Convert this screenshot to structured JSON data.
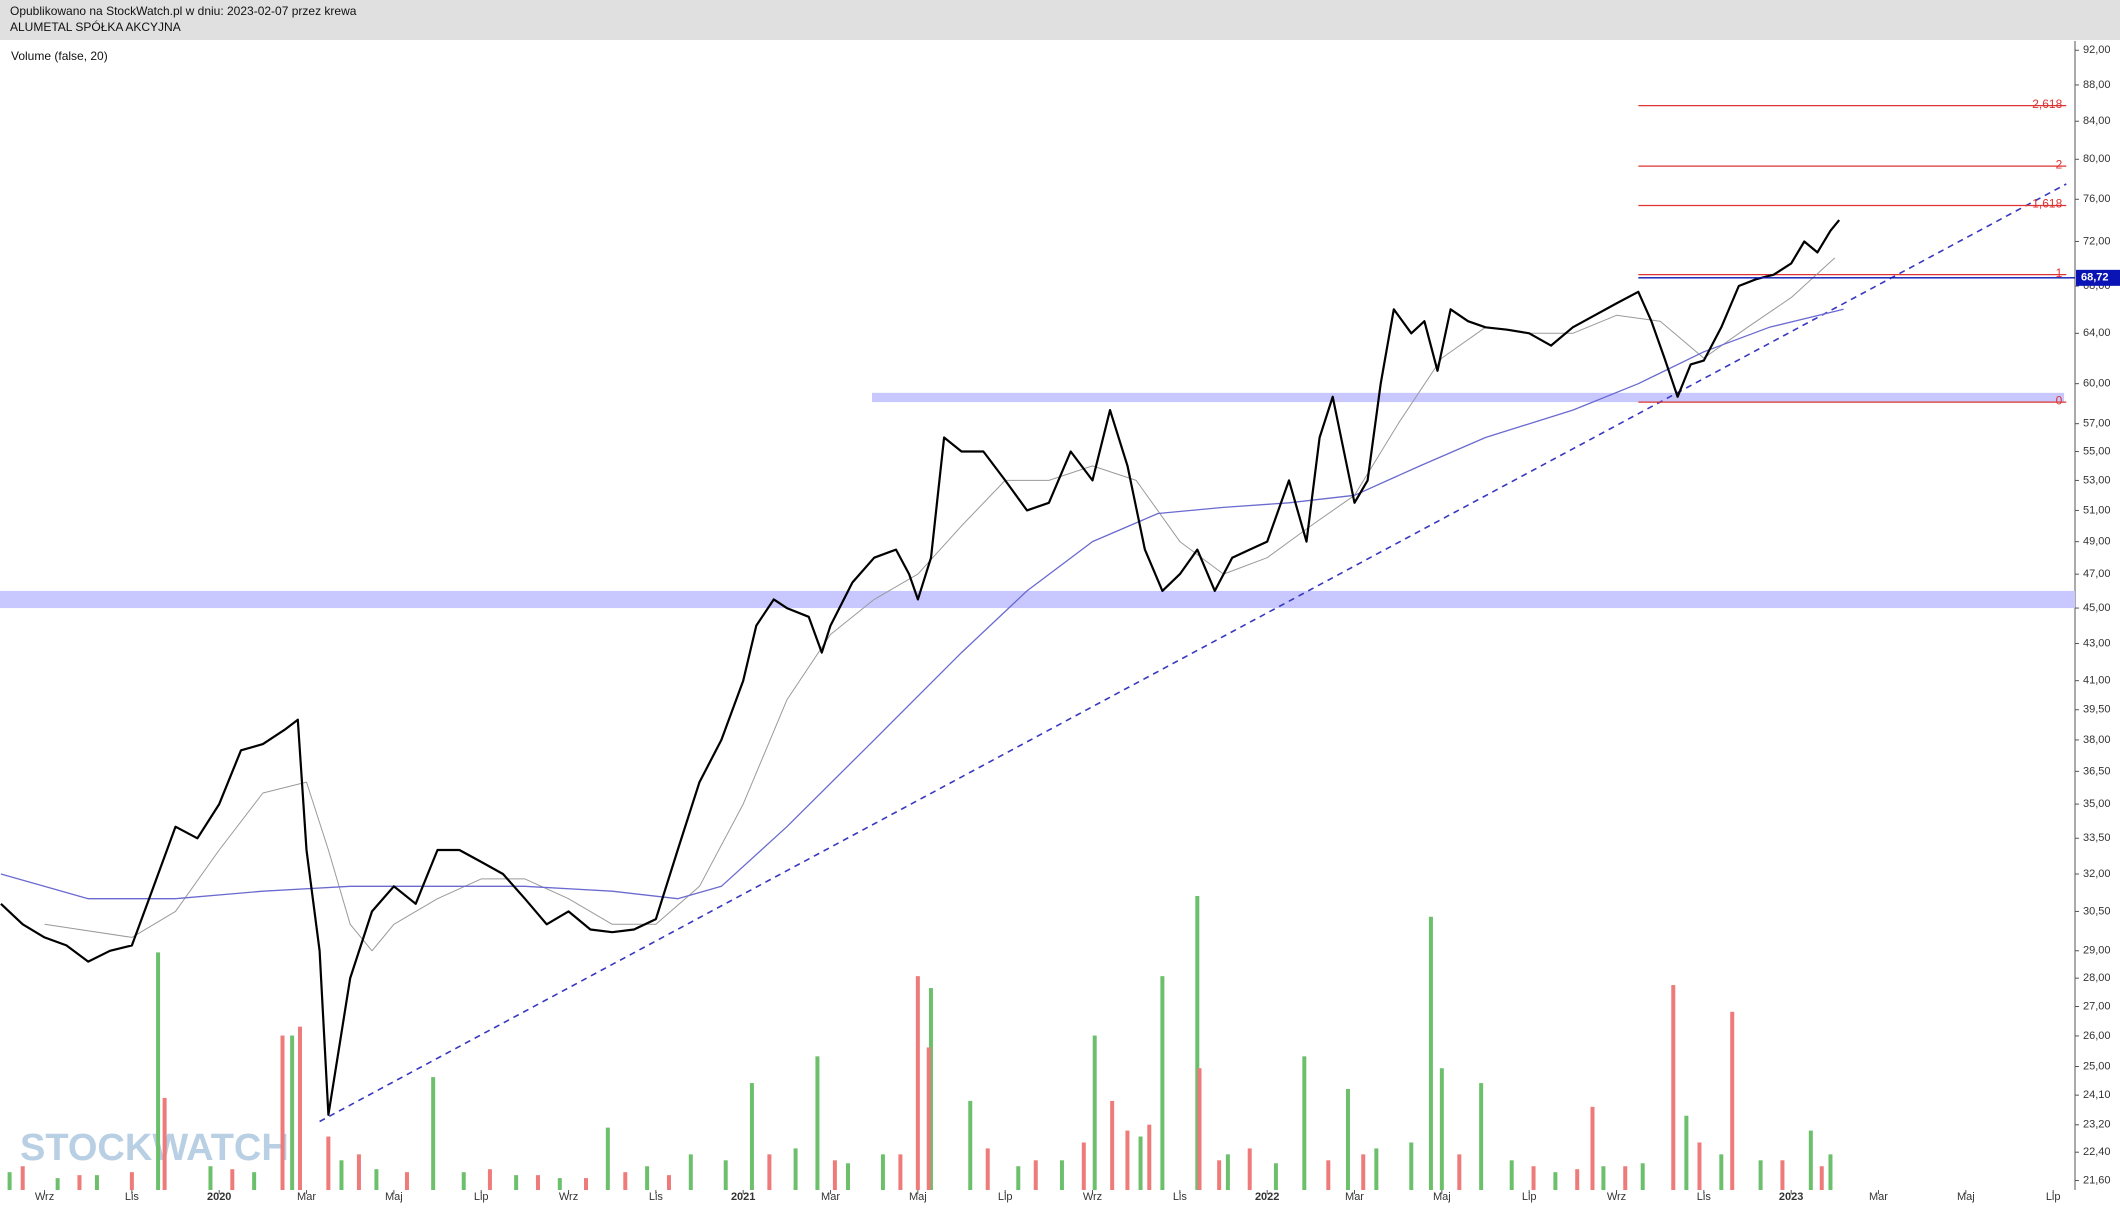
{
  "chart_data": {
    "type": "line",
    "title": "Opublikowano na StockWatch.pl w dniu: 2023-02-07 przez krewa",
    "subtitle": "ALUMETAL SPÓŁKA AKCYJNA",
    "indicator_label": "Volume (false, 20)",
    "watermark": "STOCKWATCH",
    "log_scale": true,
    "xlim": [
      -1.02,
      46.5
    ],
    "xticks": [
      {
        "value": 0,
        "label": "Wrz"
      },
      {
        "value": 2,
        "label": "Lis"
      },
      {
        "value": 4,
        "label": "2020"
      },
      {
        "value": 6,
        "label": "Mar"
      },
      {
        "value": 8,
        "label": "Maj"
      },
      {
        "value": 10,
        "label": "Lip"
      },
      {
        "value": 12,
        "label": "Wrz"
      },
      {
        "value": 14,
        "label": "Lis"
      },
      {
        "value": 16,
        "label": "2021"
      },
      {
        "value": 18,
        "label": "Mar"
      },
      {
        "value": 20,
        "label": "Maj"
      },
      {
        "value": 22,
        "label": "Lip"
      },
      {
        "value": 24,
        "label": "Wrz"
      },
      {
        "value": 26,
        "label": "Lis"
      },
      {
        "value": 28,
        "label": "2022"
      },
      {
        "value": 30,
        "label": "Mar"
      },
      {
        "value": 32,
        "label": "Maj"
      },
      {
        "value": 34,
        "label": "Lip"
      },
      {
        "value": 36,
        "label": "Wrz"
      },
      {
        "value": 38,
        "label": "Lis"
      },
      {
        "value": 40,
        "label": "2023"
      },
      {
        "value": 42,
        "label": "Mar"
      },
      {
        "value": 44,
        "label": "Maj"
      },
      {
        "value": 46,
        "label": "Lip"
      }
    ],
    "ylim": [
      21.34,
      93.1
    ],
    "yticks": [
      {
        "value": 92,
        "label": "92,00"
      },
      {
        "value": 88,
        "label": "88,00"
      },
      {
        "value": 84,
        "label": "84,00"
      },
      {
        "value": 80,
        "label": "80,00"
      },
      {
        "value": 76,
        "label": "76,00"
      },
      {
        "value": 72,
        "label": "72,00"
      },
      {
        "value": 68,
        "label": "68,00"
      },
      {
        "value": 64,
        "label": "64,00"
      },
      {
        "value": 60,
        "label": "60,00"
      },
      {
        "value": 57,
        "label": "57,00"
      },
      {
        "value": 55,
        "label": "55,00"
      },
      {
        "value": 53,
        "label": "53,00"
      },
      {
        "value": 51,
        "label": "51,00"
      },
      {
        "value": 49,
        "label": "49,00"
      },
      {
        "value": 47,
        "label": "47,00"
      },
      {
        "value": 45,
        "label": "45,00"
      },
      {
        "value": 43,
        "label": "43,00"
      },
      {
        "value": 41,
        "label": "41,00"
      },
      {
        "value": 39.5,
        "label": "39,50"
      },
      {
        "value": 38,
        "label": "38,00"
      },
      {
        "value": 36.5,
        "label": "36,50"
      },
      {
        "value": 35,
        "label": "35,00"
      },
      {
        "value": 33.5,
        "label": "33,50"
      },
      {
        "value": 32,
        "label": "32,00"
      },
      {
        "value": 30.5,
        "label": "30,50"
      },
      {
        "value": 29,
        "label": "29,00"
      },
      {
        "value": 28,
        "label": "28,00"
      },
      {
        "value": 27,
        "label": "27,00"
      },
      {
        "value": 26,
        "label": "26,00"
      },
      {
        "value": 25,
        "label": "25,00"
      },
      {
        "value": 24.1,
        "label": "24,10"
      },
      {
        "value": 23.2,
        "label": "23,20"
      },
      {
        "value": 22.4,
        "label": "22,40"
      },
      {
        "value": 21.6,
        "label": "21,60"
      }
    ],
    "bands": [
      {
        "color": "#c8c8ff",
        "from": 45.0,
        "to": 46.0,
        "x": [
          -1.02,
          46.5
        ]
      },
      {
        "color": "#c8c8ff",
        "from": 58.6,
        "to": 59.3,
        "x": [
          18.95,
          46.25
        ]
      }
    ],
    "series": [
      {
        "color": "#9a9a9a",
        "width": 1,
        "x": [
          0,
          2,
          3,
          4,
          5,
          6,
          6.5,
          7,
          7.5,
          8,
          9,
          10,
          11,
          12,
          13,
          14,
          15,
          16,
          17,
          18,
          19,
          20,
          21,
          22,
          23,
          24,
          25,
          26,
          27,
          28,
          29,
          30,
          31,
          32,
          33,
          34,
          35,
          36,
          37,
          38,
          39,
          40,
          41
        ],
        "values": [
          30,
          29.5,
          30.5,
          33,
          35.5,
          36,
          33,
          30,
          29,
          30,
          31,
          31.8,
          31.8,
          31,
          30,
          30,
          31.5,
          35,
          40,
          43.5,
          45.5,
          47,
          50,
          53,
          53,
          54,
          53,
          49,
          47,
          48,
          50,
          52,
          57,
          62,
          64.5,
          64,
          64,
          65.5,
          65,
          62,
          64.5,
          67,
          70.5
        ]
      },
      {
        "color": "#6a6ad0",
        "width": 1.3,
        "x": [
          -1,
          1,
          3,
          5,
          7,
          9,
          11,
          13,
          14.5,
          15.5,
          17,
          19,
          21,
          22.5,
          24,
          25.5,
          27,
          28.5,
          30,
          31.5,
          33,
          35,
          36.5,
          38,
          39.5,
          41.2
        ],
        "values": [
          32,
          31,
          31,
          31.3,
          31.5,
          31.5,
          31.5,
          31.3,
          31,
          31.5,
          34,
          38,
          42.5,
          46,
          49,
          50.8,
          51.2,
          51.5,
          52,
          54,
          56,
          58,
          60,
          62.5,
          64.5,
          66
        ]
      },
      {
        "color": "#000000",
        "width": 2.2,
        "x": [
          -1,
          -0.5,
          0,
          0.5,
          1,
          1.5,
          2,
          2.5,
          3,
          3.5,
          4,
          4.5,
          5,
          5.5,
          5.8,
          6,
          6.3,
          6.5,
          7,
          7.5,
          8,
          8.5,
          9,
          9.5,
          10,
          10.5,
          11,
          11.5,
          12,
          12.5,
          13,
          13.5,
          14,
          14.5,
          15,
          15.5,
          16,
          16.3,
          16.7,
          17,
          17.5,
          17.8,
          18,
          18.5,
          19,
          19.5,
          19.8,
          20,
          20.3,
          20.6,
          21,
          21.5,
          22,
          22.5,
          23,
          23.5,
          24,
          24.4,
          24.8,
          25.2,
          25.6,
          26,
          26.4,
          26.8,
          27.2,
          27.6,
          28,
          28.5,
          28.9,
          29.2,
          29.5,
          30,
          30.3,
          30.6,
          30.9,
          31.3,
          31.6,
          31.9,
          32.2,
          32.6,
          33,
          33.5,
          34,
          34.5,
          35,
          35.5,
          36,
          36.5,
          36.8,
          37.1,
          37.4,
          37.7,
          38,
          38.4,
          38.8,
          39.2,
          39.6,
          40,
          40.3,
          40.6,
          40.9,
          41.1
        ],
        "values": [
          30.8,
          30,
          29.5,
          29.2,
          28.6,
          29,
          29.2,
          31.5,
          34,
          33.5,
          35,
          37.5,
          37.8,
          38.5,
          39,
          33,
          29,
          23.5,
          28,
          30.5,
          31.5,
          30.8,
          33,
          33,
          32.5,
          32,
          31,
          30,
          30.5,
          29.8,
          29.7,
          29.8,
          30.2,
          33,
          36,
          38,
          41,
          44,
          45.5,
          45,
          44.5,
          42.5,
          44,
          46.5,
          48,
          48.5,
          47,
          45.5,
          48,
          56,
          55,
          55,
          53,
          51,
          51.5,
          55,
          53,
          58,
          54,
          48.5,
          46,
          47,
          48.5,
          46,
          48,
          48.5,
          49,
          53,
          49,
          56,
          59,
          51.5,
          53,
          60,
          66,
          64,
          65,
          61,
          66,
          65,
          64.5,
          64.3,
          64,
          63,
          64.5,
          65.5,
          66.5,
          67.5,
          65,
          62,
          59,
          61.5,
          61.8,
          64.5,
          68,
          68.6,
          69,
          70,
          72,
          71,
          73,
          74
        ]
      }
    ],
    "trendline": {
      "color": "#3838c0",
      "x": [
        6.3,
        46.3
      ],
      "values": [
        23.3,
        77.5
      ]
    },
    "fib_color": "#dd3333",
    "fib_x": [
      36.5,
      46.3
    ],
    "fib_levels": [
      {
        "label": "0",
        "value": 58.6
      },
      {
        "label": "1",
        "value": 69.0
      },
      {
        "label": "1,618",
        "value": 75.4
      },
      {
        "label": "2",
        "value": 79.3
      },
      {
        "label": "2,618",
        "value": 85.7
      }
    ],
    "last_price": {
      "value": 68.72,
      "label": "68,72",
      "color": "#0a14b4"
    },
    "volume": {
      "vlim": [
        0,
        100
      ],
      "series": [
        {
          "color": "#6cc06c",
          "x": [
            2.6,
            5.67,
            8.9,
            12.9,
            16.2,
            17.7,
            20.3,
            21.2,
            24.05,
            25.6,
            26.4,
            28.85,
            29.85,
            31.75,
            32.0,
            32.9,
            37.6,
            40.45,
            -0.8,
            0.3,
            1.2,
            3.8,
            4.8,
            6.8,
            7.6,
            9.6,
            10.8,
            11.8,
            13.8,
            14.8,
            15.6,
            17.2,
            18.4,
            19.2,
            22.3,
            23.3,
            25.1,
            27.1,
            28.2,
            30.5,
            31.3,
            33.6,
            34.6,
            35.7,
            36.6,
            38.4,
            39.3,
            40.9
          ],
          "values": [
            80,
            52,
            38,
            21,
            36,
            45,
            68,
            30,
            52,
            72,
            99,
            45,
            34,
            92,
            41,
            36,
            25,
            20,
            6,
            4,
            5,
            8,
            6,
            10,
            7,
            6,
            5,
            4,
            8,
            12,
            10,
            14,
            9,
            12,
            8,
            10,
            18,
            12,
            9,
            14,
            16,
            10,
            6,
            8,
            9,
            12,
            10,
            12
          ]
        },
        {
          "color": "#ee7a7a",
          "x": [
            2.75,
            5.45,
            5.85,
            20.0,
            20.25,
            24.45,
            26.45,
            35.45,
            37.3,
            38.65,
            -0.5,
            0.8,
            2.0,
            4.3,
            6.5,
            7.2,
            8.3,
            10.2,
            11.3,
            12.4,
            13.3,
            14.3,
            16.6,
            18.1,
            19.6,
            21.6,
            22.7,
            23.8,
            24.8,
            25.3,
            26.9,
            27.6,
            29.4,
            30.2,
            32.4,
            34.1,
            35.1,
            36.2,
            37.9,
            39.8,
            40.7
          ],
          "values": [
            31,
            52,
            55,
            72,
            48,
            30,
            41,
            28,
            69,
            60,
            8,
            5,
            6,
            7,
            18,
            12,
            6,
            7,
            5,
            4,
            6,
            5,
            12,
            10,
            12,
            14,
            10,
            16,
            20,
            22,
            10,
            14,
            10,
            12,
            12,
            8,
            7,
            8,
            16,
            10,
            8
          ]
        }
      ]
    }
  }
}
